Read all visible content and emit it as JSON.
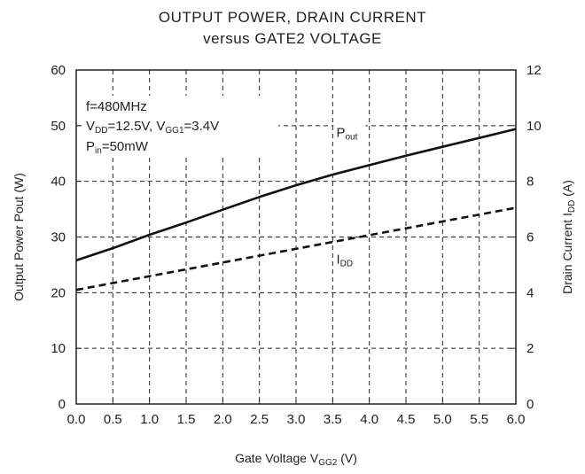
{
  "chart_data": {
    "type": "line",
    "title_line1": "OUTPUT POWER, DRAIN CURRENT",
    "title_line2": "versus GATE2 VOLTAGE",
    "xlabel": {
      "main": "Gate Voltage V",
      "sub": "GG2",
      "after": " (V)"
    },
    "ylabel_left": "Output Power Pout (W)",
    "ylabel_right": {
      "main": "Drain Current I",
      "sub": "DD",
      "after": " (A)"
    },
    "xlim": [
      0,
      6
    ],
    "ylim_left": [
      0,
      60
    ],
    "ylim_right": [
      0,
      12
    ],
    "x_ticks": [
      "0.0",
      "0.5",
      "1.0",
      "1.5",
      "2.0",
      "2.5",
      "3.0",
      "3.5",
      "4.0",
      "4.5",
      "5.0",
      "5.5",
      "6.0"
    ],
    "y_left_ticks": [
      "0",
      "10",
      "20",
      "30",
      "40",
      "50",
      "60"
    ],
    "y_right_ticks": [
      "0",
      "2",
      "4",
      "6",
      "8",
      "10",
      "12"
    ],
    "grid": true,
    "annotations": {
      "freq": "f=480MHz",
      "vdd": {
        "a": "V",
        "a_sub": "DD",
        "b": "=12.5V, V",
        "b_sub": "GG1",
        "c": "=3.4V"
      },
      "pin": {
        "a": "P",
        "a_sub": "in",
        "b": "=50mW"
      }
    },
    "series": [
      {
        "label": {
          "main": "P",
          "sub": "out"
        },
        "axis": "left",
        "style": "solid",
        "x": [
          0,
          0.5,
          1.0,
          1.5,
          2.0,
          2.5,
          3.0,
          3.5,
          4.0,
          4.5,
          5.0,
          5.5,
          6.0
        ],
        "values": [
          25.8,
          28.0,
          30.4,
          32.6,
          34.9,
          37.2,
          39.3,
          41.2,
          42.9,
          44.6,
          46.2,
          47.8,
          49.4
        ]
      },
      {
        "label": {
          "main": "I",
          "sub": "DD"
        },
        "axis": "right",
        "style": "dashed",
        "x": [
          0,
          6.0
        ],
        "values": [
          4.1,
          7.05
        ]
      }
    ]
  }
}
